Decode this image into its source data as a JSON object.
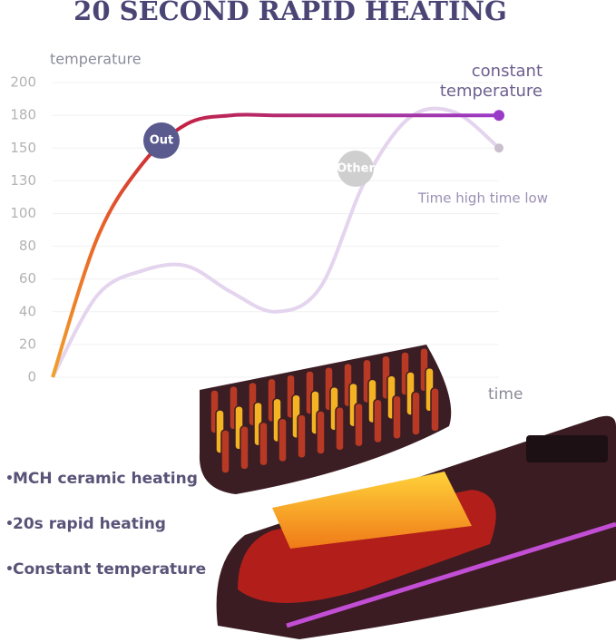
{
  "chart_data": {
    "type": "line",
    "title": "20 SECOND RAPID HEATING",
    "y_label": "temperature",
    "x_label": "time",
    "x": [
      0,
      1,
      2,
      3,
      4,
      5,
      6,
      7,
      8,
      9,
      10
    ],
    "xlim": [
      0,
      10
    ],
    "ylim": [
      0,
      200
    ],
    "yticks": [
      0,
      20,
      40,
      60,
      80,
      100,
      130,
      150,
      180,
      200
    ],
    "grid": true,
    "series": [
      {
        "name": "Out",
        "color": "#e8772a",
        "values": [
          0,
          85,
          140,
          172,
          180,
          180,
          180,
          180,
          180,
          180,
          180
        ]
      },
      {
        "name": "Other",
        "color": "#e4d4ee",
        "values": [
          0,
          50,
          65,
          68,
          52,
          40,
          55,
          130,
          178,
          182,
          150
        ]
      }
    ],
    "end_label": "constant temperature",
    "other_label": "Time high time low"
  },
  "features": [
    "MCH ceramic heating",
    "20s rapid heating",
    "Constant temperature"
  ]
}
